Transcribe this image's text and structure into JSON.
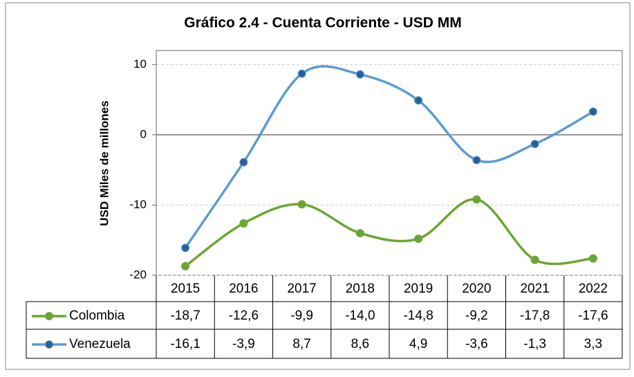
{
  "chart_data": {
    "type": "line",
    "title": "Gráfico 2.4 - Cuenta Corriente - USD MM",
    "y_label": "USD Miles de millones",
    "categories": [
      "2015",
      "2016",
      "2017",
      "2018",
      "2019",
      "2020",
      "2021",
      "2022"
    ],
    "series": [
      {
        "name": "Colombia",
        "color": "#6aa631",
        "marker_color": "#6aa631",
        "values": [
          -18.7,
          -12.6,
          -9.9,
          -14.0,
          -14.8,
          -9.2,
          -17.8,
          -17.6
        ],
        "value_labels": [
          "-18,7",
          "-12,6",
          "-9,9",
          "-14,0",
          "-14,8",
          "-9,2",
          "-17,8",
          "-17,6"
        ]
      },
      {
        "name": "Venezuela",
        "color": "#5b9bd5",
        "marker_color": "#2a6099",
        "values": [
          -16.1,
          -3.9,
          8.7,
          8.6,
          4.9,
          -3.6,
          -1.3,
          3.3
        ],
        "value_labels": [
          "-16,1",
          "-3,9",
          "8,7",
          "8,6",
          "4,9",
          "-3,6",
          "-1,3",
          "3,3"
        ]
      }
    ],
    "ylim": [
      -20,
      12
    ],
    "yticks": [
      -20,
      -10,
      0,
      10
    ],
    "grid": true,
    "smooth": true
  }
}
